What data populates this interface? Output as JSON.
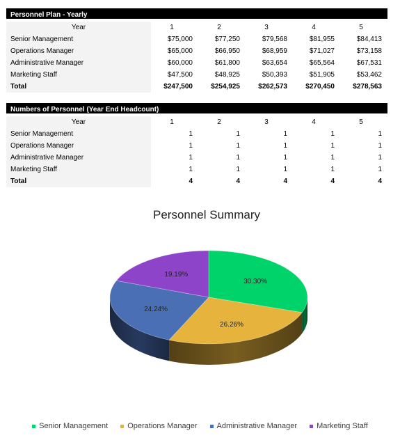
{
  "plan": {
    "title": "Personnel Plan - Yearly",
    "year_label": "Year",
    "years": [
      "1",
      "2",
      "3",
      "4",
      "5"
    ],
    "rows": [
      {
        "label": "Senior Management",
        "values": [
          "$75,000",
          "$77,250",
          "$79,568",
          "$81,955",
          "$84,413"
        ]
      },
      {
        "label": "Operations Manager",
        "values": [
          "$65,000",
          "$66,950",
          "$68,959",
          "$71,027",
          "$73,158"
        ]
      },
      {
        "label": "Administrative Manager",
        "values": [
          "$60,000",
          "$61,800",
          "$63,654",
          "$65,564",
          "$67,531"
        ]
      },
      {
        "label": "Marketing Staff",
        "values": [
          "$47,500",
          "$48,925",
          "$50,393",
          "$51,905",
          "$53,462"
        ]
      }
    ],
    "total": {
      "label": "Total",
      "values": [
        "$247,500",
        "$254,925",
        "$262,573",
        "$270,450",
        "$278,563"
      ]
    }
  },
  "headcount": {
    "title": "Numbers of Personnel (Year End Headcount)",
    "year_label": "Year",
    "years": [
      "1",
      "2",
      "3",
      "4",
      "5"
    ],
    "rows": [
      {
        "label": "Senior Management",
        "values": [
          "1",
          "1",
          "1",
          "1",
          "1"
        ]
      },
      {
        "label": "Operations Manager",
        "values": [
          "1",
          "1",
          "1",
          "1",
          "1"
        ]
      },
      {
        "label": "Administrative Manager",
        "values": [
          "1",
          "1",
          "1",
          "1",
          "1"
        ]
      },
      {
        "label": "Marketing Staff",
        "values": [
          "1",
          "1",
          "1",
          "1",
          "1"
        ]
      }
    ],
    "total": {
      "label": "Total",
      "values": [
        "4",
        "4",
        "4",
        "4",
        "4"
      ]
    }
  },
  "chart_data": {
    "type": "pie",
    "title": "Personnel Summary",
    "categories": [
      "Senior Management",
      "Operations Manager",
      "Administrative Manager",
      "Marketing Staff"
    ],
    "values": [
      30.3,
      26.26,
      24.24,
      19.19
    ],
    "labels": [
      "30.30%",
      "26.26%",
      "24.24%",
      "19.19%"
    ],
    "colors": [
      "#00d36a",
      "#e6b33c",
      "#4a6fb5",
      "#8e44c9"
    ],
    "legend_position": "bottom"
  }
}
